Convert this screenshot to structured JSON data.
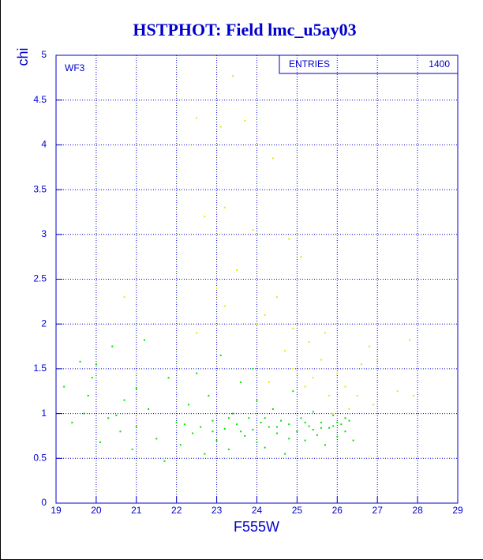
{
  "chart_data": {
    "type": "scatter",
    "title": "HSTPHOT: Field lmc_u5ay03",
    "x_label": "F555W",
    "y_label": "chi",
    "annotation": "WF3",
    "stats_label": "ENTRIES",
    "entries": 1400,
    "xlim": [
      19,
      29
    ],
    "ylim": [
      0,
      5
    ],
    "xticks": [
      19,
      20,
      21,
      22,
      23,
      24,
      25,
      26,
      27,
      28,
      29
    ],
    "yticks": [
      0,
      0.5,
      1,
      1.5,
      2,
      2.5,
      3,
      3.5,
      4,
      4.5,
      5
    ],
    "grid": true,
    "series": [
      {
        "color": "#00e000",
        "x": [
          19.2,
          19.4,
          19.6,
          19.7,
          19.9,
          20.0,
          20.1,
          20.3,
          20.5,
          20.4,
          20.7,
          20.9,
          21.0,
          21.2,
          21.3,
          21.5,
          21.7,
          21.8,
          22.0,
          22.1,
          22.3,
          22.4,
          22.5,
          22.6,
          22.7,
          22.8,
          22.9,
          23.0,
          23.1,
          23.2,
          23.3,
          23.4,
          23.5,
          23.6,
          23.7,
          23.8,
          23.9,
          24.0,
          24.1,
          24.2,
          24.3,
          24.4,
          24.5,
          24.6,
          24.7,
          24.8,
          24.9,
          25.0,
          25.1,
          25.2,
          25.3,
          25.4,
          25.5,
          25.6,
          25.7,
          25.8,
          25.9,
          26.0,
          26.1,
          26.2,
          26.3,
          26.4,
          24.2,
          23.6,
          25.2,
          25.6,
          26.0,
          24.8,
          22.2,
          21.0,
          20.6,
          19.8,
          23.9,
          24.5,
          25.4,
          25.9,
          26.2,
          22.9,
          23.3,
          24.0
        ],
        "values": [
          1.3,
          0.9,
          1.58,
          1.0,
          1.4,
          1.55,
          0.68,
          0.95,
          0.98,
          1.75,
          1.15,
          0.6,
          0.85,
          1.82,
          1.05,
          0.72,
          0.47,
          1.4,
          0.9,
          0.65,
          1.1,
          0.78,
          1.45,
          0.85,
          0.55,
          1.2,
          0.92,
          0.7,
          1.65,
          0.83,
          0.6,
          1.0,
          0.88,
          1.35,
          0.75,
          0.95,
          0.82,
          1.15,
          0.9,
          0.62,
          0.85,
          1.05,
          0.78,
          0.92,
          0.55,
          0.88,
          1.25,
          0.8,
          0.95,
          0.7,
          0.86,
          1.02,
          0.76,
          0.9,
          0.65,
          0.84,
          0.98,
          0.74,
          0.88,
          0.8,
          0.92,
          0.7,
          0.95,
          0.8,
          0.9,
          0.84,
          0.9,
          0.72,
          0.88,
          1.28,
          0.8,
          1.2,
          1.5,
          0.85,
          0.82,
          0.86,
          0.95,
          0.8,
          0.95,
          0.68
        ]
      },
      {
        "color": "#e8e800",
        "x": [
          23.4,
          23.1,
          23.7,
          22.5,
          24.4,
          22.7,
          23.2,
          23.9,
          24.8,
          25.1,
          23.5,
          24.5,
          24.2,
          24.9,
          25.3,
          25.6,
          26.0,
          25.8,
          26.2,
          26.6,
          27.0,
          27.8,
          27.5,
          27.9,
          26.9,
          25.4,
          24.7,
          24.0,
          23.2,
          22.5,
          20.7,
          23.0,
          25.7,
          26.5,
          25.2,
          24.9,
          26.8,
          24.3,
          25.9,
          26.3
        ],
        "values": [
          4.77,
          4.2,
          4.27,
          4.3,
          3.85,
          3.2,
          3.3,
          3.05,
          2.95,
          2.75,
          2.6,
          2.3,
          2.1,
          1.95,
          1.8,
          1.6,
          1.45,
          1.2,
          1.3,
          1.55,
          1.6,
          1.82,
          1.25,
          1.2,
          1.1,
          1.4,
          1.7,
          2.0,
          2.2,
          1.9,
          2.3,
          2.4,
          1.9,
          1.2,
          1.3,
          1.5,
          1.75,
          1.35,
          1.0,
          1.05
        ]
      }
    ]
  }
}
